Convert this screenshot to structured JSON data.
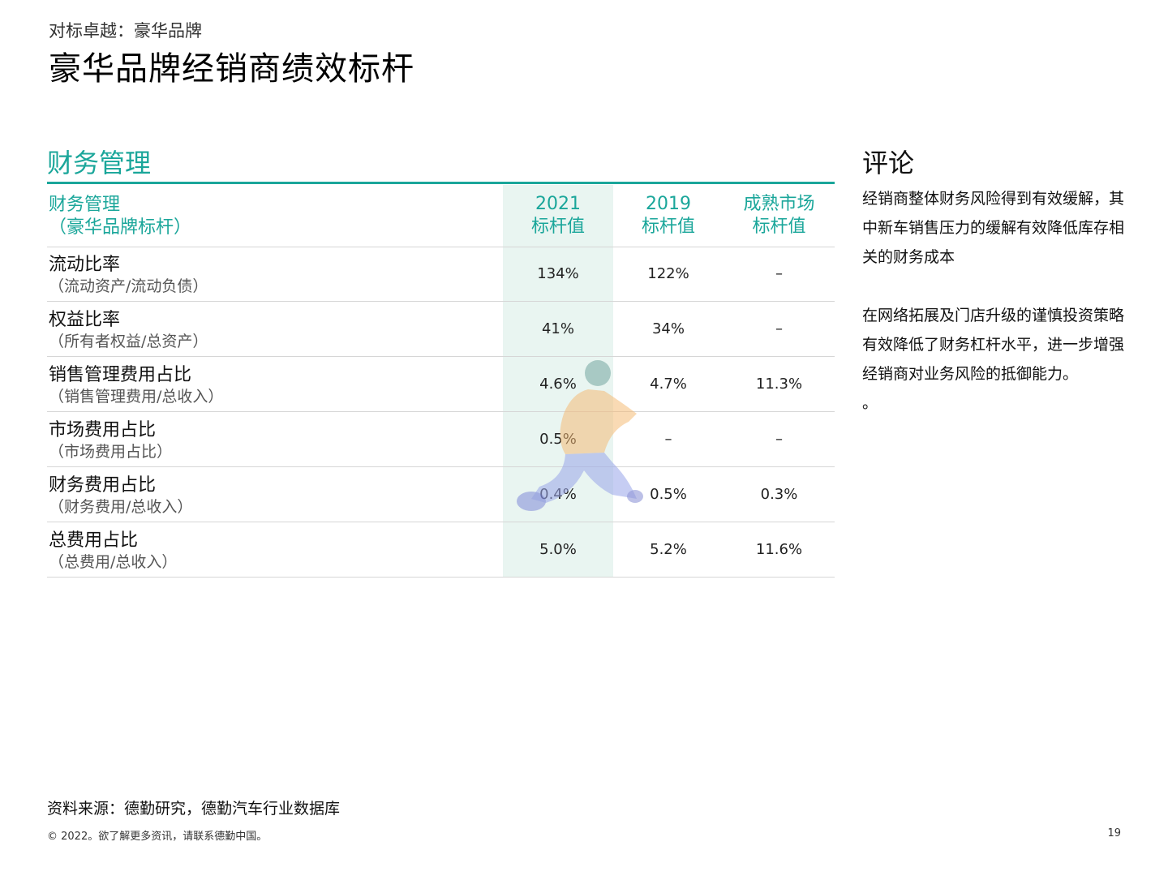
{
  "header": {
    "subtitle": "对标卓越：豪华品牌",
    "title": "豪华品牌经销商绩效标杆"
  },
  "section": {
    "title": "财务管理"
  },
  "table": {
    "header_label_line1": "财务管理",
    "header_label_line2": "（豪华品牌标杆）",
    "columns": [
      {
        "line1": "2021",
        "line2": "标杆值"
      },
      {
        "line1": "2019",
        "line2": "标杆值"
      },
      {
        "line1": "成熟市场",
        "line2": "标杆值"
      }
    ],
    "rows": [
      {
        "label": "流动比率",
        "sub": "（流动资产/流动负债）",
        "values": [
          "134%",
          "122%",
          "–"
        ]
      },
      {
        "label": "权益比率",
        "sub": "（所有者权益/总资产）",
        "values": [
          "41%",
          "34%",
          "–"
        ]
      },
      {
        "label": "销售管理费用占比",
        "sub": "（销售管理费用/总收入）",
        "values": [
          "4.6%",
          "4.7%",
          "11.3%"
        ]
      },
      {
        "label": "市场费用占比",
        "sub": "（市场费用占比）",
        "values": [
          "0.5%",
          "–",
          "–"
        ]
      },
      {
        "label": "财务费用占比",
        "sub": "（财务费用/总收入）",
        "values": [
          "0.4%",
          "0.5%",
          "0.3%"
        ]
      },
      {
        "label": "总费用占比",
        "sub": "（总费用/总收入）",
        "values": [
          "5.0%",
          "5.2%",
          "11.6%"
        ]
      }
    ],
    "highlight_color": "#e9f5f1",
    "accent_color": "#1aa69a"
  },
  "commentary": {
    "title": "评论",
    "paragraph1": "经销商整体财务风险得到有效缓解，其中新车销售压力的缓解有效降低库存相关的财务成本",
    "paragraph2": "在网络拓展及门店升级的谨慎投资策略有效降低了财务杠杆水平，进一步增强经销商对业务风险的抵御能力。",
    "paragraph3": "。"
  },
  "footer": {
    "source": "资料来源：德勤研究，德勤汽车行业数据库",
    "copyright": "© 2022。欲了解更多资讯，请联系德勤中国。",
    "page_number": "19"
  }
}
